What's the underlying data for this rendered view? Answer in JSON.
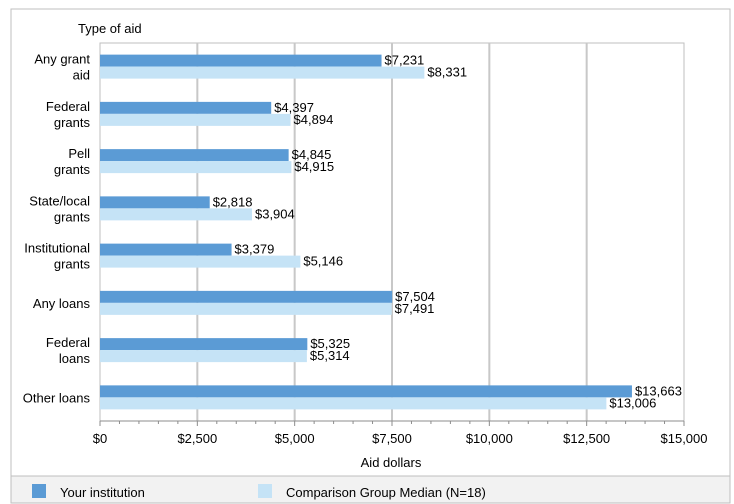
{
  "chart_data": {
    "type": "bar",
    "orientation": "horizontal",
    "ylabel": "Type of aid",
    "xlabel": "Aid dollars",
    "xlim": [
      0,
      15000
    ],
    "x_ticks": [
      "$0",
      "$2,500",
      "$5,000",
      "$7,500",
      "$10,000",
      "$12,500",
      "$15,000"
    ],
    "x_tick_values": [
      0,
      2500,
      5000,
      7500,
      10000,
      12500,
      15000
    ],
    "grid": "vertical",
    "legend_position": "bottom",
    "categories": [
      [
        "Any grant",
        "aid"
      ],
      [
        "Federal",
        "grants"
      ],
      [
        "Pell",
        "grants"
      ],
      [
        "State/local",
        "grants"
      ],
      [
        "Institutional",
        "grants"
      ],
      [
        "Any loans"
      ],
      [
        "Federal",
        "loans"
      ],
      [
        "Other loans"
      ]
    ],
    "series": [
      {
        "name": "Your institution",
        "color": "#5b9bd5",
        "values": [
          7231,
          4397,
          4845,
          2818,
          3379,
          7504,
          5325,
          13663
        ],
        "labels": [
          "$7,231",
          "$4,397",
          "$4,845",
          "$2,818",
          "$3,379",
          "$7,504",
          "$5,325",
          "$13,663"
        ]
      },
      {
        "name": "Comparison Group Median (N=18)",
        "color": "#c5e3f6",
        "values": [
          8331,
          4894,
          4915,
          3904,
          5146,
          7491,
          5314,
          13006
        ],
        "labels": [
          "$8,331",
          "$4,894",
          "$4,915",
          "$3,904",
          "$5,146",
          "$7,491",
          "$5,314",
          "$13,006"
        ]
      }
    ]
  }
}
